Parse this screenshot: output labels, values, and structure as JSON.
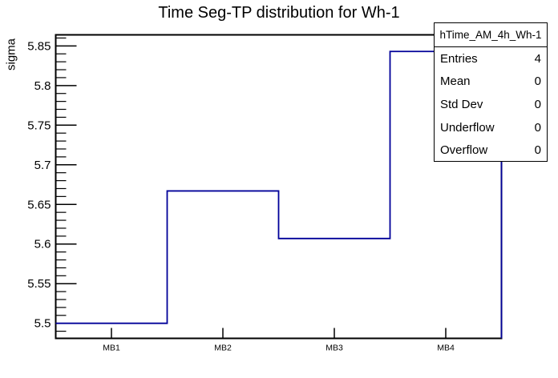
{
  "title": "Time Seg-TP distribution for Wh-1",
  "colors": {
    "hist_line": "#000099",
    "axis": "#000000",
    "background": "#ffffff"
  },
  "stats_box": {
    "header": "hTime_AM_4h_Wh-1",
    "rows": [
      {
        "label": "Entries",
        "value": "4"
      },
      {
        "label": "Mean",
        "value": "0"
      },
      {
        "label": "Std Dev",
        "value": "0"
      },
      {
        "label": "Underflow",
        "value": "0"
      },
      {
        "label": "Overflow",
        "value": "0"
      }
    ]
  },
  "chart_data": {
    "type": "bar",
    "style": "ROOT-step-histogram",
    "title": "Time Seg-TP distribution for Wh-1",
    "categories": [
      "MB1",
      "MB2",
      "MB3",
      "MB4"
    ],
    "values": [
      5.5,
      5.667,
      5.607,
      5.843
    ],
    "xlabel": "",
    "ylabel": "sigma",
    "ylim": [
      5.481,
      5.864
    ],
    "yticks": [
      5.5,
      5.55,
      5.6,
      5.65,
      5.7,
      5.75,
      5.8,
      5.85
    ],
    "ytick_labels": [
      "5.5",
      "5.55",
      "5.6",
      "5.65",
      "5.7",
      "5.75",
      "5.8",
      "5.85"
    ],
    "minor_tick_step": 0.01,
    "grid": false,
    "legend": "none"
  }
}
